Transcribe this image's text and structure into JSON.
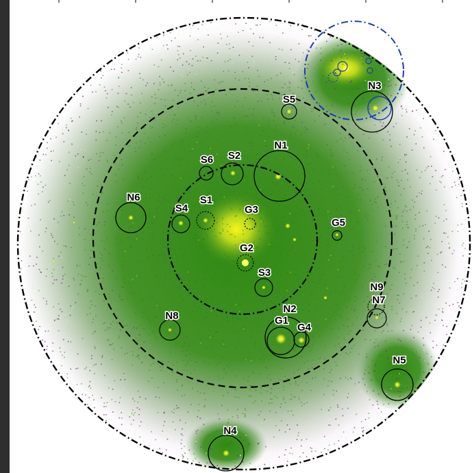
{
  "colors": {
    "background": "#ffffff",
    "sidebar": "#2f2f2f",
    "diffuse_green": "#3f8f1c",
    "diffuse_purple": "#7a2a78",
    "bright_yellow": "#f3f21a",
    "outer_ring": "#000000",
    "blue_ring": "#1a3bb3"
  },
  "labels": {
    "S5": "S5",
    "N3": "N3",
    "N1": "N1",
    "S6": "S6",
    "S2": "S2",
    "N6": "N6",
    "S4": "S4",
    "S1": "S1",
    "G3": "G3",
    "G5": "G5",
    "G2": "G2",
    "S3": "S3",
    "N9": "N9",
    "N7": "N7",
    "N2": "N2",
    "G1": "G1",
    "G4": "G4",
    "N8": "N8",
    "N5": "N5",
    "N4": "N4"
  }
}
